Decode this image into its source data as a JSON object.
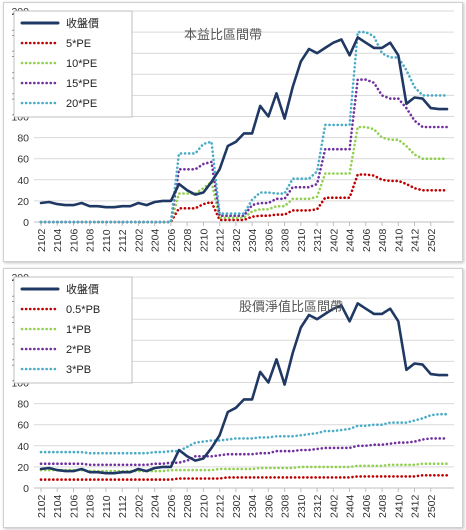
{
  "chart_data": [
    {
      "type": "line",
      "title": "本益比區間帶",
      "x_tick_labels": [
        "2102",
        "2104",
        "2106",
        "2108",
        "2110",
        "2112",
        "2202",
        "2204",
        "2206",
        "2208",
        "2210",
        "2212",
        "2302",
        "2304",
        "2306",
        "2308",
        "2310",
        "2312",
        "2402",
        "2404",
        "2406",
        "2408",
        "2410",
        "2412",
        "2502"
      ],
      "ylim": [
        0,
        200
      ],
      "y_ticks": [
        0,
        20,
        40,
        60,
        80,
        100,
        120,
        140,
        160,
        180,
        200
      ],
      "legend_position": "top-left",
      "grid": true,
      "series": [
        {
          "name": "收盤價",
          "color": "#1f3864",
          "style": "solid",
          "values": [
            18,
            19,
            17,
            16,
            16,
            18,
            15,
            15,
            14,
            14,
            15,
            15,
            18,
            16,
            19,
            20,
            20,
            36,
            30,
            26,
            28,
            38,
            50,
            72,
            76,
            84,
            84,
            110,
            100,
            122,
            98,
            128,
            152,
            164,
            160,
            165,
            170,
            173,
            158,
            175,
            170,
            165,
            165,
            170,
            158,
            112,
            118,
            117,
            108,
            107,
            107
          ]
        },
        {
          "name": "5*PE",
          "color": "#c00000",
          "style": "dotted",
          "values": [
            0,
            0,
            0,
            0,
            0,
            0,
            0,
            0,
            0,
            0,
            0,
            0,
            0,
            0,
            0,
            0,
            0,
            13,
            13,
            13,
            17,
            19,
            2,
            2,
            2,
            2,
            5,
            6,
            6,
            7,
            7,
            11,
            11,
            11,
            12,
            23,
            23,
            23,
            23,
            45,
            45,
            44,
            40,
            39,
            39,
            36,
            32,
            30,
            30,
            30,
            30
          ]
        },
        {
          "name": "10*PE",
          "color": "#92d050",
          "style": "dotted",
          "values": [
            0,
            0,
            0,
            0,
            0,
            0,
            0,
            0,
            0,
            0,
            0,
            0,
            0,
            0,
            0,
            0,
            0,
            27,
            27,
            27,
            32,
            38,
            4,
            4,
            4,
            4,
            10,
            12,
            12,
            15,
            15,
            22,
            22,
            22,
            24,
            46,
            46,
            46,
            46,
            90,
            90,
            88,
            80,
            78,
            78,
            72,
            64,
            60,
            60,
            60,
            60
          ]
        },
        {
          "name": "15*PE",
          "color": "#7030a0",
          "style": "dotted",
          "values": [
            0,
            0,
            0,
            0,
            0,
            0,
            0,
            0,
            0,
            0,
            0,
            0,
            0,
            0,
            0,
            0,
            0,
            50,
            50,
            50,
            55,
            57,
            6,
            6,
            6,
            6,
            16,
            18,
            18,
            22,
            22,
            33,
            33,
            33,
            36,
            69,
            69,
            69,
            69,
            135,
            135,
            132,
            120,
            117,
            117,
            108,
            96,
            90,
            90,
            90,
            90
          ]
        },
        {
          "name": "20*PE",
          "color": "#4bacc6",
          "style": "dotted",
          "values": [
            0,
            0,
            0,
            0,
            0,
            0,
            0,
            0,
            0,
            0,
            0,
            0,
            0,
            0,
            0,
            0,
            0,
            65,
            65,
            65,
            74,
            76,
            8,
            8,
            8,
            8,
            21,
            28,
            28,
            27,
            27,
            41,
            41,
            41,
            48,
            92,
            92,
            92,
            92,
            180,
            180,
            176,
            160,
            156,
            156,
            144,
            128,
            120,
            120,
            120,
            120
          ]
        }
      ]
    },
    {
      "type": "line",
      "title": "股價淨值比區間帶",
      "x_tick_labels": [
        "2102",
        "2104",
        "2106",
        "2108",
        "2110",
        "2112",
        "2202",
        "2204",
        "2206",
        "2208",
        "2210",
        "2212",
        "2302",
        "2304",
        "2306",
        "2308",
        "2310",
        "2312",
        "2402",
        "2404",
        "2406",
        "2408",
        "2410",
        "2412",
        "2502"
      ],
      "ylim": [
        0,
        200
      ],
      "y_ticks": [
        0,
        20,
        40,
        60,
        80,
        100,
        120,
        140,
        160,
        180,
        200
      ],
      "legend_position": "top-left",
      "grid": true,
      "series": [
        {
          "name": "收盤價",
          "color": "#1f3864",
          "style": "solid",
          "values": [
            18,
            19,
            17,
            16,
            16,
            18,
            15,
            15,
            14,
            14,
            15,
            15,
            18,
            16,
            19,
            20,
            20,
            36,
            30,
            26,
            28,
            38,
            50,
            72,
            76,
            84,
            84,
            110,
            100,
            122,
            98,
            128,
            152,
            164,
            160,
            165,
            170,
            173,
            158,
            175,
            170,
            165,
            165,
            170,
            158,
            112,
            118,
            117,
            108,
            107,
            107
          ]
        },
        {
          "name": "0.5*PB",
          "color": "#c00000",
          "style": "dotted",
          "values": [
            8,
            8,
            8,
            8,
            8,
            8,
            8,
            8,
            8,
            8,
            8,
            8,
            8,
            8,
            8,
            8,
            8,
            9,
            9,
            9,
            9,
            9,
            9,
            10,
            10,
            10,
            10,
            10,
            10,
            10,
            10,
            10,
            10,
            10,
            10,
            10,
            10,
            10,
            10,
            11,
            11,
            11,
            11,
            11,
            11,
            11,
            11,
            12,
            12,
            12,
            12
          ]
        },
        {
          "name": "1*PB",
          "color": "#92d050",
          "style": "dotted",
          "values": [
            17,
            17,
            17,
            17,
            17,
            17,
            16,
            16,
            16,
            16,
            16,
            16,
            16,
            16,
            16,
            16,
            17,
            17,
            17,
            17,
            17,
            17,
            18,
            18,
            18,
            18,
            18,
            19,
            19,
            19,
            19,
            19,
            20,
            20,
            20,
            20,
            20,
            20,
            20,
            21,
            21,
            21,
            21,
            22,
            22,
            22,
            22,
            23,
            23,
            23,
            23
          ]
        },
        {
          "name": "2*PB",
          "color": "#7030a0",
          "style": "dotted",
          "values": [
            23,
            23,
            23,
            23,
            23,
            23,
            22,
            22,
            22,
            22,
            22,
            22,
            22,
            22,
            23,
            23,
            24,
            24,
            26,
            30,
            30,
            30,
            31,
            32,
            32,
            32,
            32,
            33,
            33,
            35,
            35,
            35,
            36,
            36,
            37,
            38,
            38,
            38,
            38,
            40,
            40,
            41,
            41,
            42,
            43,
            43,
            44,
            46,
            47,
            47,
            47
          ]
        },
        {
          "name": "3*PB",
          "color": "#4bacc6",
          "style": "dotted",
          "values": [
            34,
            34,
            34,
            34,
            34,
            34,
            33,
            33,
            33,
            33,
            33,
            33,
            33,
            33,
            34,
            34,
            35,
            35,
            39,
            43,
            44,
            45,
            45,
            46,
            47,
            47,
            47,
            48,
            48,
            49,
            49,
            49,
            50,
            51,
            52,
            54,
            54,
            55,
            56,
            59,
            59,
            60,
            60,
            62,
            62,
            62,
            64,
            66,
            69,
            70,
            70
          ]
        }
      ]
    }
  ]
}
